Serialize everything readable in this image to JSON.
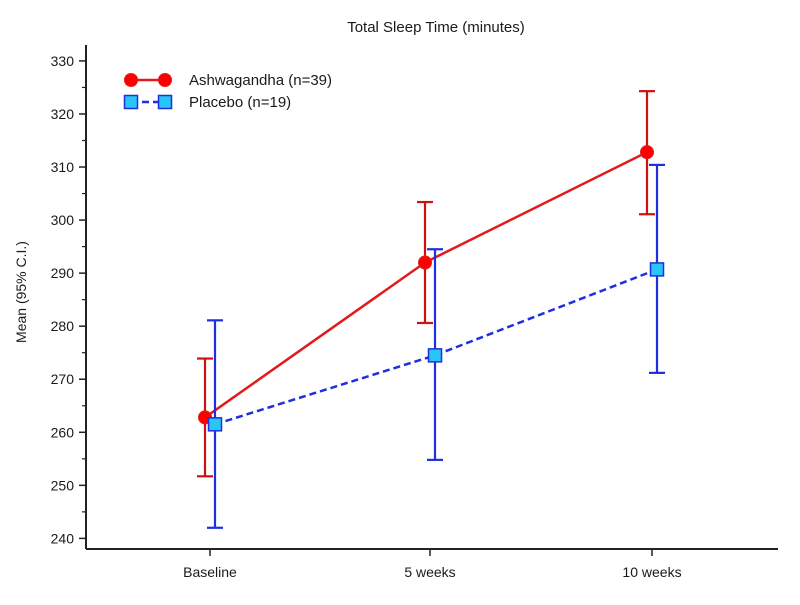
{
  "chart_data": {
    "type": "line",
    "title": "Total Sleep Time (minutes)",
    "xlabel": "",
    "ylabel": "Mean  (95% C.I.)",
    "categories": [
      "Baseline",
      "5 weeks",
      "10 weeks"
    ],
    "ylim": [
      238,
      333
    ],
    "yticks": [
      240,
      250,
      260,
      270,
      280,
      290,
      300,
      310,
      320,
      330
    ],
    "grid": false,
    "legend_position": "top-left",
    "series": [
      {
        "name": "Ashwagandha (n=39)",
        "color": "#e31a1c",
        "line_style": "solid",
        "marker": "circle",
        "marker_fill": "#ff0000",
        "errorbar_color": "#cc1111",
        "values": [
          262.8,
          292.0,
          312.8
        ],
        "ci_low": [
          251.7,
          280.6,
          301.1
        ],
        "ci_high": [
          273.9,
          303.4,
          324.3
        ]
      },
      {
        "name": "Placebo (n=19)",
        "color": "#1f2fe0",
        "line_style": "dashed",
        "marker": "square",
        "marker_fill": "#29c5f6",
        "errorbar_color": "#1f2fe0",
        "values": [
          261.5,
          274.5,
          290.7
        ],
        "ci_low": [
          242.0,
          254.8,
          271.2
        ],
        "ci_high": [
          281.1,
          294.5,
          310.4
        ]
      }
    ]
  }
}
